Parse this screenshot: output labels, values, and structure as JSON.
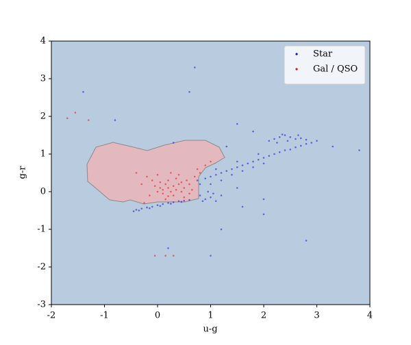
{
  "chart_data": {
    "type": "scatter",
    "x_label": "u-g",
    "y_label": "g-r",
    "xlim": [
      -2,
      4
    ],
    "ylim": [
      -3,
      4
    ],
    "xticks": [
      -2,
      -1,
      0,
      1,
      2,
      3,
      4
    ],
    "yticks": [
      -3,
      -2,
      -1,
      0,
      1,
      2,
      3,
      4
    ],
    "legend": "upper right",
    "series": [
      {
        "name": "Star",
        "color": "#1010d0",
        "x": [
          -0.45,
          -0.4,
          -0.3,
          -0.2,
          -0.1,
          0,
          0.1,
          0.2,
          0.3,
          0.4,
          0.5,
          0.6,
          -0.35,
          -0.15,
          0.05,
          0.25,
          0.45,
          0.8,
          0.9,
          1.0,
          1.1,
          0.95,
          1.2,
          0.85,
          1.05,
          0.75,
          0.8,
          0.9,
          1.0,
          1.1,
          1.2,
          1.3,
          1.4,
          1.5,
          1.6,
          1.7,
          1.8,
          1.9,
          2.0,
          2.1,
          2.2,
          2.3,
          2.4,
          2.5,
          2.6,
          2.7,
          2.8,
          2.9,
          3.0,
          1.0,
          1.2,
          1.4,
          1.6,
          1.8,
          2.0,
          1.1,
          1.5,
          1.9,
          2.1,
          2.2,
          2.3,
          2.4,
          2.5,
          2.6,
          2.7,
          2.8,
          2.25,
          2.45,
          2.65,
          2.35,
          0.7,
          -1.4,
          0.6,
          -0.8,
          1.5,
          1.8,
          1.3,
          1.6,
          2.0,
          1.2,
          2.8,
          1.0,
          0.2,
          0.3,
          3.3,
          3.8,
          2.0,
          1.5
        ],
        "values": [
          -0.52,
          -0.48,
          -0.45,
          -0.42,
          -0.4,
          -0.36,
          -0.33,
          -0.3,
          -0.28,
          -0.25,
          -0.24,
          -0.22,
          -0.5,
          -0.44,
          -0.38,
          -0.32,
          -0.27,
          -0.1,
          -0.2,
          -0.15,
          -0.25,
          0,
          -0.1,
          -0.25,
          -0.05,
          0.3,
          0.2,
          0.35,
          0.4,
          0.45,
          0.5,
          0.55,
          0.6,
          0.65,
          0.7,
          0.75,
          0.8,
          0.85,
          0.9,
          0.95,
          1.0,
          1.05,
          1.1,
          1.12,
          1.18,
          1.22,
          1.27,
          1.3,
          1.35,
          0.2,
          0.3,
          0.45,
          0.55,
          0.65,
          0.75,
          0.6,
          0.8,
          1.0,
          1.35,
          1.4,
          1.45,
          1.5,
          1.45,
          1.4,
          1.42,
          1.38,
          1.3,
          1.35,
          1.5,
          1.52,
          3.3,
          2.65,
          2.65,
          1.9,
          1.8,
          1.6,
          1.2,
          -0.4,
          -0.6,
          -1.0,
          -1.3,
          -1.7,
          -1.5,
          1.3,
          1.2,
          1.1,
          -0.2,
          0.1
        ]
      },
      {
        "name": "Gal / QSO",
        "color": "#e01010",
        "x": [
          0.2,
          0.1,
          0.3,
          0.25,
          0.15,
          0.35,
          0.05,
          0.4,
          0.45,
          0,
          -0.05,
          0.2,
          0.3,
          0.1,
          0.5,
          0.55,
          0.6,
          0.65,
          0.7,
          0.8,
          -0.1,
          -0.2,
          -0.3,
          -0.15,
          0,
          0.25,
          0.4,
          0.5,
          0.15,
          -0.25,
          0.9,
          1.0,
          0.75,
          -0.4,
          0.35,
          0.6,
          0.05,
          0.2,
          0.45,
          -1.7,
          -1.55,
          -1.3,
          0.3,
          0.15,
          -0.05
        ],
        "values": [
          0.1,
          0.05,
          0.15,
          0,
          0.2,
          0.05,
          0.1,
          0.2,
          0,
          0,
          0.15,
          0.3,
          -0.1,
          -0.05,
          0.1,
          0.3,
          0.2,
          0.05,
          0.4,
          0.5,
          0.3,
          0.4,
          0.2,
          -0.1,
          0.45,
          0.5,
          0.45,
          -0.15,
          -0.2,
          -0.3,
          0.7,
          0.8,
          0.6,
          0.5,
          0.35,
          -0.05,
          0.25,
          -0.12,
          0.25,
          1.95,
          2.1,
          1.9,
          -1.7,
          -1.7,
          -1.7
        ]
      }
    ]
  }
}
